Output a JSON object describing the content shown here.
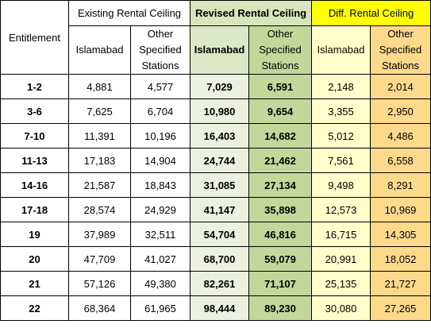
{
  "headers": {
    "entitlement": "Entitlement",
    "existing": "Existing Rental Ceiling",
    "revised": "Revised Rental Ceiling",
    "diff": "Diff. Rental Ceiling",
    "islamabad": "Islamabad",
    "other_line1": "Other",
    "other_line2": "Specified",
    "other_line3": "Stations"
  },
  "rows": [
    {
      "ent": "1-2",
      "ex_isl": "4,881",
      "ex_oth": "4,577",
      "rev_isl": "7,029",
      "rev_oth": "6,591",
      "diff_isl": "2,148",
      "diff_oth": "2,014"
    },
    {
      "ent": "3-6",
      "ex_isl": "7,625",
      "ex_oth": "6,704",
      "rev_isl": "10,980",
      "rev_oth": "9,654",
      "diff_isl": "3,355",
      "diff_oth": "2,950"
    },
    {
      "ent": "7-10",
      "ex_isl": "11,391",
      "ex_oth": "10,196",
      "rev_isl": "16,403",
      "rev_oth": "14,682",
      "diff_isl": "5,012",
      "diff_oth": "4,486"
    },
    {
      "ent": "11-13",
      "ex_isl": "17,183",
      "ex_oth": "14,904",
      "rev_isl": "24,744",
      "rev_oth": "21,462",
      "diff_isl": "7,561",
      "diff_oth": "6,558"
    },
    {
      "ent": "14-16",
      "ex_isl": "21,587",
      "ex_oth": "18,843",
      "rev_isl": "31,085",
      "rev_oth": "27,134",
      "diff_isl": "9,498",
      "diff_oth": "8,291"
    },
    {
      "ent": "17-18",
      "ex_isl": "28,574",
      "ex_oth": "24,929",
      "rev_isl": "41,147",
      "rev_oth": "35,898",
      "diff_isl": "12,573",
      "diff_oth": "10,969"
    },
    {
      "ent": "19",
      "ex_isl": "37,989",
      "ex_oth": "32,511",
      "rev_isl": "54,704",
      "rev_oth": "46,816",
      "diff_isl": "16,715",
      "diff_oth": "14,305"
    },
    {
      "ent": "20",
      "ex_isl": "47,709",
      "ex_oth": "41,027",
      "rev_isl": "68,700",
      "rev_oth": "59,079",
      "diff_isl": "20,991",
      "diff_oth": "18,052"
    },
    {
      "ent": "21",
      "ex_isl": "57,126",
      "ex_oth": "49,380",
      "rev_isl": "82,261",
      "rev_oth": "71,107",
      "diff_isl": "25,135",
      "diff_oth": "21,727"
    },
    {
      "ent": "22",
      "ex_isl": "68,364",
      "ex_oth": "61,965",
      "rev_isl": "98,444",
      "rev_oth": "89,230",
      "diff_isl": "30,080",
      "diff_oth": "27,265"
    }
  ]
}
